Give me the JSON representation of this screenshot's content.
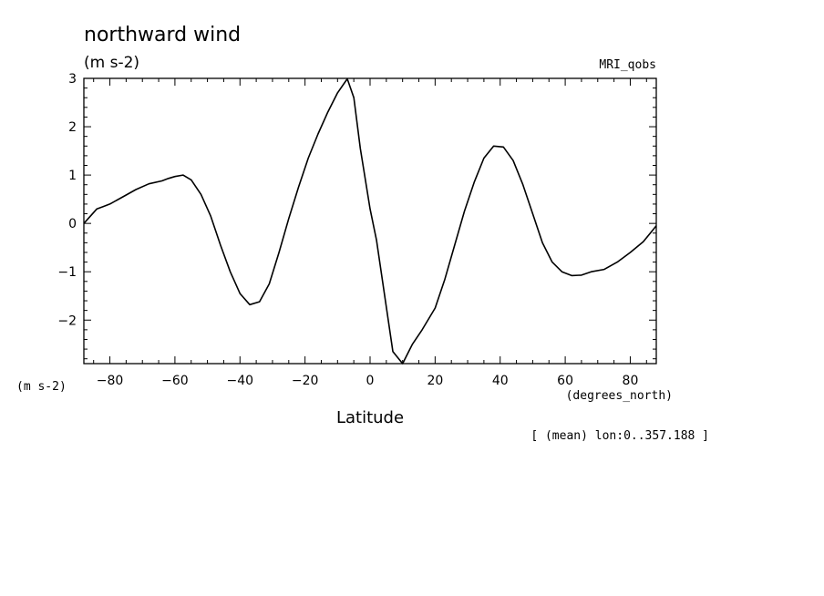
{
  "chart_data": {
    "type": "line",
    "title": "northward wind",
    "units_top": "(m s-2)",
    "units_left": "(m s-2)",
    "dataset": "MRI_qobs",
    "xlabel": "Latitude",
    "xunits": "(degrees_north)",
    "footnote": "[ (mean) lon:0..357.188 ]",
    "xlim": [
      -88,
      88
    ],
    "ylim": [
      -2.9,
      3.0
    ],
    "xticks": [
      -80,
      -60,
      -40,
      -20,
      0,
      20,
      40,
      60,
      80
    ],
    "xtick_labels": [
      "-80",
      "-60",
      "-40",
      "-20",
      "0",
      "20",
      "40",
      "60",
      "80"
    ],
    "yticks": [
      -2,
      -1,
      0,
      1,
      2,
      3
    ],
    "ytick_labels": [
      "-2",
      "-1",
      "0",
      "1",
      "2",
      "3"
    ],
    "grid": false,
    "series": [
      {
        "color": "#000000",
        "x": [
          -88,
          -84,
          -82,
          -80,
          -76,
          -72,
          -68,
          -64,
          -62,
          -60,
          -57.5,
          -55,
          -52,
          -49,
          -46,
          -43,
          -40,
          -37,
          -34,
          -31,
          -28,
          -25,
          -22,
          -19,
          -16,
          -13,
          -10,
          -7,
          -5,
          -3,
          0,
          2,
          7,
          10,
          13,
          16,
          20,
          23,
          26,
          29,
          32,
          35,
          38,
          41,
          44,
          47,
          50,
          53,
          56,
          59,
          62,
          65,
          68,
          72,
          76,
          80,
          84,
          88
        ],
        "y": [
          0.0,
          0.3,
          0.35,
          0.4,
          0.55,
          0.7,
          0.82,
          0.88,
          0.93,
          0.97,
          1.0,
          0.9,
          0.6,
          0.15,
          -0.45,
          -1.0,
          -1.45,
          -1.68,
          -1.62,
          -1.25,
          -0.6,
          0.1,
          0.75,
          1.35,
          1.85,
          2.3,
          2.7,
          2.99,
          2.6,
          1.55,
          0.3,
          -0.35,
          -2.65,
          -2.9,
          -2.5,
          -2.2,
          -1.75,
          -1.15,
          -0.45,
          0.25,
          0.85,
          1.35,
          1.6,
          1.58,
          1.3,
          0.8,
          0.2,
          -0.4,
          -0.8,
          -1.0,
          -1.08,
          -1.07,
          -1.0,
          -0.95,
          -0.8,
          -0.6,
          -0.38,
          -0.05
        ]
      }
    ]
  }
}
